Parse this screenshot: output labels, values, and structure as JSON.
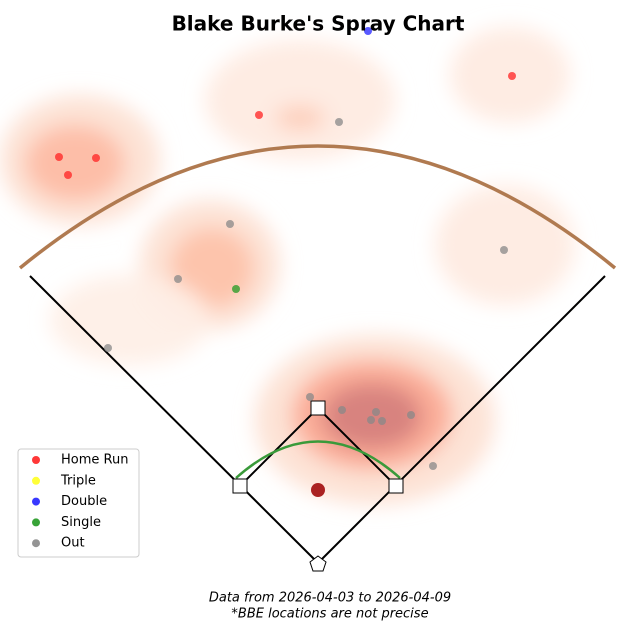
{
  "chart_data": {
    "type": "scatter",
    "title": "Blake Burke's Spray Chart",
    "notes": [
      "Data from 2026-04-03 to 2026-04-09",
      "*BBE locations are not precise"
    ],
    "xlim": [
      -308,
      308
    ],
    "ylim": [
      -5,
      553
    ],
    "legend": "lower left",
    "series": [
      {
        "name": "Home Run",
        "color": "#ff2222",
        "x": [
          -259,
          -222,
          -250,
          194,
          -59
        ],
        "y": [
          406,
          405,
          388,
          487,
          448
        ]
      },
      {
        "name": "Triple",
        "color": "#ffff22",
        "x": [],
        "y": []
      },
      {
        "name": "Double",
        "color": "#2222ff",
        "x": [
          50
        ],
        "y": [
          532
        ]
      },
      {
        "name": "Single",
        "color": "#229922",
        "x": [
          -82
        ],
        "y": [
          274
        ]
      },
      {
        "name": "Out",
        "color": "#888888",
        "x": [
          21,
          -88,
          -140,
          186,
          -210,
          -8,
          24,
          58,
          53,
          64,
          93,
          115
        ],
        "y": [
          441,
          339,
          284,
          313,
          215,
          166,
          153,
          151,
          143,
          142,
          148,
          97
        ]
      }
    ]
  }
}
